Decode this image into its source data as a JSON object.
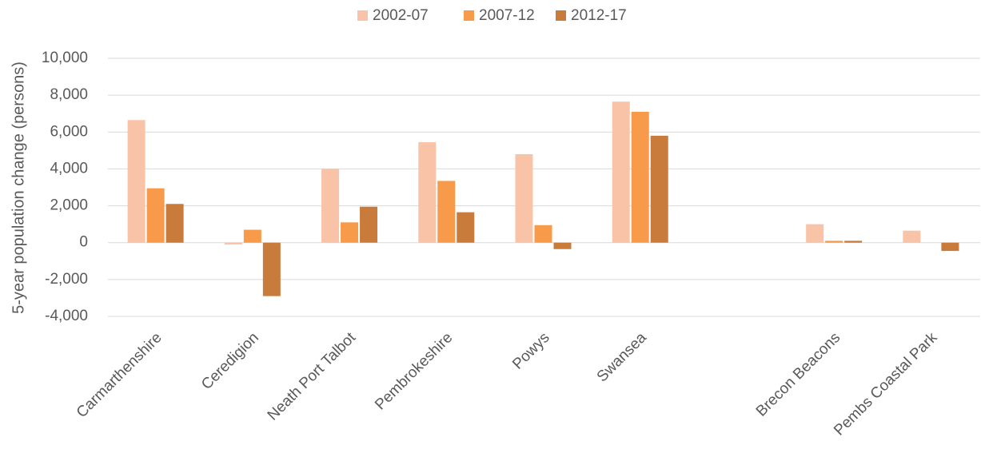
{
  "chart_data": {
    "type": "bar",
    "y_label": "5-year population change (persons)",
    "categories": [
      "Carmarthenshire",
      "Ceredigion",
      "Neath Port Talbot",
      "Pembrokeshire",
      "Powys",
      "Swansea",
      null,
      "Brecon Beacons",
      "Pembs Coastal Park"
    ],
    "series": [
      {
        "name": "2002-07",
        "color": "#f9c3a8",
        "values": [
          6650,
          -100,
          4000,
          5450,
          4800,
          7650,
          null,
          1000,
          650
        ]
      },
      {
        "name": "2007-12",
        "color": "#f79a4a",
        "values": [
          2950,
          700,
          1100,
          3350,
          950,
          7100,
          null,
          100,
          0
        ]
      },
      {
        "name": "2012-17",
        "color": "#c97b3c",
        "values": [
          2100,
          -2900,
          1950,
          1650,
          -350,
          5800,
          null,
          100,
          -450
        ]
      }
    ],
    "ylim": [
      -4000,
      10000
    ],
    "yticks": [
      {
        "value": -4000,
        "label": "-4,000"
      },
      {
        "value": -2000,
        "label": "-2,000"
      },
      0,
      {
        "value": 2000,
        "label": "2,000"
      },
      {
        "value": 4000,
        "label": "4,000"
      },
      {
        "value": 6000,
        "label": "6,000"
      },
      {
        "value": 8000,
        "label": "8,000"
      },
      {
        "value": 10000,
        "label": "10,000"
      }
    ],
    "grid": true,
    "legend": "top"
  }
}
